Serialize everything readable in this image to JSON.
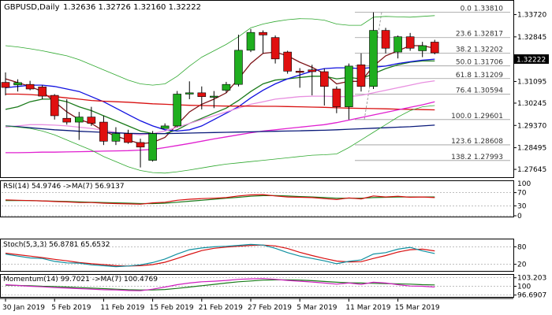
{
  "header": {
    "symbol": "GBPUSD,Daily",
    "ohlc": "1.32636 1.32726 1.32160 1.32222"
  },
  "price_tag": "1.32222",
  "chart_data": {
    "type": "candlestick",
    "symbol": "GBPUSD",
    "timeframe": "Daily",
    "price_ylim": [
      1.274,
      1.342
    ],
    "price_ticks": [
      "1.33720",
      "1.32845",
      "1.31970",
      "1.31095",
      "1.30245",
      "1.29370",
      "1.28495",
      "1.27645"
    ],
    "x_ticks": [
      {
        "i": 0,
        "label": "30 Jan 2019"
      },
      {
        "i": 4,
        "label": "5 Feb 2019"
      },
      {
        "i": 8,
        "label": "11 Feb 2019"
      },
      {
        "i": 12,
        "label": "15 Feb 2019"
      },
      {
        "i": 16,
        "label": "21 Feb 2019"
      },
      {
        "i": 20,
        "label": "27 Feb 2019"
      },
      {
        "i": 24,
        "label": "5 Mar 2019"
      },
      {
        "i": 28,
        "label": "11 Mar 2019"
      },
      {
        "i": 32,
        "label": "15 Mar 2019"
      }
    ],
    "candles": [
      {
        "o": 1.3106,
        "h": 1.3145,
        "l": 1.3055,
        "c": 1.3086
      },
      {
        "o": 1.3096,
        "h": 1.3118,
        "l": 1.307,
        "c": 1.3105
      },
      {
        "o": 1.3098,
        "h": 1.3112,
        "l": 1.3075,
        "c": 1.308
      },
      {
        "o": 1.3088,
        "h": 1.3095,
        "l": 1.304,
        "c": 1.3052
      },
      {
        "o": 1.3055,
        "h": 1.306,
        "l": 1.296,
        "c": 1.2975
      },
      {
        "o": 1.2965,
        "h": 1.304,
        "l": 1.294,
        "c": 1.295
      },
      {
        "o": 1.295,
        "h": 1.299,
        "l": 1.288,
        "c": 1.297
      },
      {
        "o": 1.297,
        "h": 1.301,
        "l": 1.2935,
        "c": 1.2945
      },
      {
        "o": 1.295,
        "h": 1.2975,
        "l": 1.286,
        "c": 1.2875
      },
      {
        "o": 1.2875,
        "h": 1.293,
        "l": 1.286,
        "c": 1.2905
      },
      {
        "o": 1.2905,
        "h": 1.292,
        "l": 1.2865,
        "c": 1.287
      },
      {
        "o": 1.287,
        "h": 1.2885,
        "l": 1.2772,
        "c": 1.2852
      },
      {
        "o": 1.28,
        "h": 1.2915,
        "l": 1.2795,
        "c": 1.2905
      },
      {
        "o": 1.2925,
        "h": 1.2945,
        "l": 1.2925,
        "c": 1.2935
      },
      {
        "o": 1.2935,
        "h": 1.3072,
        "l": 1.293,
        "c": 1.306
      },
      {
        "o": 1.306,
        "h": 1.311,
        "l": 1.304,
        "c": 1.3065
      },
      {
        "o": 1.3065,
        "h": 1.309,
        "l": 1.3,
        "c": 1.305
      },
      {
        "o": 1.305,
        "h": 1.3072,
        "l": 1.3005,
        "c": 1.3052
      },
      {
        "o": 1.3075,
        "h": 1.3108,
        "l": 1.3065,
        "c": 1.3098
      },
      {
        "o": 1.3098,
        "h": 1.3293,
        "l": 1.309,
        "c": 1.3232
      },
      {
        "o": 1.3232,
        "h": 1.3315,
        "l": 1.3225,
        "c": 1.3302
      },
      {
        "o": 1.3302,
        "h": 1.331,
        "l": 1.322,
        "c": 1.3292
      },
      {
        "o": 1.3282,
        "h": 1.329,
        "l": 1.318,
        "c": 1.3198
      },
      {
        "o": 1.3225,
        "h": 1.323,
        "l": 1.314,
        "c": 1.315
      },
      {
        "o": 1.315,
        "h": 1.3162,
        "l": 1.3085,
        "c": 1.3145
      },
      {
        "o": 1.3155,
        "h": 1.3175,
        "l": 1.3055,
        "c": 1.3148
      },
      {
        "o": 1.3148,
        "h": 1.316,
        "l": 1.3015,
        "c": 1.309
      },
      {
        "o": 1.308,
        "h": 1.309,
        "l": 1.2985,
        "c": 1.301
      },
      {
        "o": 1.301,
        "h": 1.318,
        "l": 1.296,
        "c": 1.317
      },
      {
        "o": 1.3175,
        "h": 1.322,
        "l": 1.307,
        "c": 1.309
      },
      {
        "o": 1.309,
        "h": 1.3381,
        "l": 1.308,
        "c": 1.331
      },
      {
        "o": 1.331,
        "h": 1.332,
        "l": 1.322,
        "c": 1.324
      },
      {
        "o": 1.3225,
        "h": 1.329,
        "l": 1.32,
        "c": 1.3285
      },
      {
        "o": 1.3285,
        "h": 1.33,
        "l": 1.323,
        "c": 1.324
      },
      {
        "o": 1.323,
        "h": 1.3265,
        "l": 1.3205,
        "c": 1.325
      },
      {
        "o": 1.3264,
        "h": 1.3273,
        "l": 1.3216,
        "c": 1.3222
      }
    ],
    "fibonacci": [
      {
        "label": "0.0 1.33810",
        "price": 1.3381
      },
      {
        "label": "23.6 1.32817",
        "price": 1.32817
      },
      {
        "label": "38.2 1.32202",
        "price": 1.32202
      },
      {
        "label": "50.0 1.31706",
        "price": 1.31706
      },
      {
        "label": "61.8 1.31209",
        "price": 1.31209
      },
      {
        "label": "76.4 1.30594",
        "price": 1.30594
      },
      {
        "label": "100.0 1.29601",
        "price": 1.29601
      },
      {
        "label": "123.6 1.28608",
        "price": 1.28608
      },
      {
        "label": "138.2 1.27993",
        "price": 1.27993
      }
    ],
    "overlays": [
      {
        "color": "#7e1418",
        "values": [
          1.312,
          1.3105,
          1.309,
          1.307,
          1.303,
          1.299,
          1.296,
          1.2945,
          1.2915,
          1.2895,
          1.288,
          1.2865,
          1.287,
          1.289,
          1.294,
          1.299,
          1.302,
          1.304,
          1.3065,
          1.312,
          1.318,
          1.322,
          1.3225,
          1.321,
          1.3185,
          1.3165,
          1.314,
          1.31,
          1.311,
          1.311,
          1.317,
          1.321,
          1.323,
          1.325,
          1.325,
          1.324
        ]
      },
      {
        "color": "#1a7a1a",
        "values": [
          1.3,
          1.301,
          1.303,
          1.304,
          1.304,
          1.303,
          1.301,
          1.2995,
          1.2975,
          1.2955,
          1.2935,
          1.2915,
          1.2905,
          1.2905,
          1.292,
          1.2945,
          1.2965,
          1.2985,
          1.3005,
          1.3035,
          1.307,
          1.31,
          1.3115,
          1.312,
          1.3125,
          1.313,
          1.313,
          1.312,
          1.3125,
          1.312,
          1.314,
          1.316,
          1.3175,
          1.3185,
          1.319,
          1.319
        ]
      },
      {
        "color": "#1010e0",
        "values": [
          1.3085,
          1.309,
          1.3095,
          1.3095,
          1.309,
          1.308,
          1.307,
          1.305,
          1.303,
          1.3005,
          1.298,
          1.2955,
          1.2935,
          1.292,
          1.2915,
          1.292,
          1.2935,
          1.296,
          1.2985,
          1.301,
          1.3045,
          1.3075,
          1.31,
          1.312,
          1.3135,
          1.315,
          1.316,
          1.3163,
          1.3163,
          1.316,
          1.3165,
          1.317,
          1.318,
          1.3187,
          1.3193,
          1.3197
        ]
      },
      {
        "color": "#e890e0",
        "values": [
          1.293,
          1.2935,
          1.294,
          1.294,
          1.2938,
          1.2935,
          1.293,
          1.2925,
          1.2918,
          1.291,
          1.2905,
          1.29,
          1.2905,
          1.2915,
          1.293,
          1.2945,
          1.296,
          1.2975,
          1.299,
          1.3005,
          1.302,
          1.303,
          1.304,
          1.3045,
          1.305,
          1.3052,
          1.3052,
          1.305,
          1.305,
          1.3055,
          1.3065,
          1.3075,
          1.3085,
          1.3095,
          1.3105,
          1.3112
        ]
      },
      {
        "color": "#d81010",
        "values": [
          1.306,
          1.306,
          1.3058,
          1.3055,
          1.305,
          1.3045,
          1.304,
          1.3035,
          1.3032,
          1.303,
          1.3028,
          1.3025,
          1.3022,
          1.302,
          1.3018,
          1.3016,
          1.3015,
          1.3014,
          1.3013,
          1.3013,
          1.3013,
          1.3012,
          1.3012,
          1.3011,
          1.301,
          1.3009,
          1.3008,
          1.3006,
          1.3005,
          1.3004,
          1.3003,
          1.3002,
          1.3001,
          1.3,
          1.2999,
          1.2998
        ]
      },
      {
        "color": "#e020d0",
        "values": [
          1.283,
          1.283,
          1.2831,
          1.2832,
          1.2832,
          1.2833,
          1.2834,
          1.2835,
          1.2836,
          1.2837,
          1.2838,
          1.284,
          1.2843,
          1.285,
          1.2858,
          1.2866,
          1.2875,
          1.2884,
          1.2892,
          1.29,
          1.2908,
          1.2915,
          1.292,
          1.2925,
          1.293,
          1.2935,
          1.294,
          1.2948,
          1.2958,
          1.2968,
          1.2978,
          1.2988,
          1.2998,
          1.3008,
          1.3018,
          1.303
        ]
      },
      {
        "color": "#0a1a7a",
        "values": [
          1.2935,
          1.2932,
          1.2928,
          1.2924,
          1.292,
          1.2917,
          1.2914,
          1.2912,
          1.291,
          1.2908,
          1.2906,
          1.2905,
          1.2905,
          1.2905,
          1.2906,
          1.2907,
          1.2908,
          1.2909,
          1.291,
          1.2911,
          1.2912,
          1.2913,
          1.2914,
          1.2915,
          1.2916,
          1.2917,
          1.2918,
          1.292,
          1.2922,
          1.2924,
          1.2926,
          1.2928,
          1.293,
          1.2932,
          1.2935,
          1.2938
        ]
      },
      {
        "color": "#2ea82e",
        "width": 0.8,
        "values": [
          1.325,
          1.3245,
          1.3238,
          1.323,
          1.322,
          1.321,
          1.3195,
          1.3175,
          1.3155,
          1.3135,
          1.3115,
          1.31,
          1.3095,
          1.31,
          1.313,
          1.317,
          1.3205,
          1.323,
          1.3255,
          1.3285,
          1.332,
          1.3335,
          1.3345,
          1.3352,
          1.3356,
          1.3355,
          1.335,
          1.3335,
          1.333,
          1.333,
          1.3362,
          1.3365,
          1.3363,
          1.3362,
          1.3365,
          1.3368
        ]
      },
      {
        "color": "#2ea82e",
        "width": 0.8,
        "values": [
          1.2935,
          1.293,
          1.2925,
          1.2915,
          1.29,
          1.288,
          1.286,
          1.284,
          1.2815,
          1.2795,
          1.2775,
          1.276,
          1.2752,
          1.275,
          1.2755,
          1.2762,
          1.277,
          1.2778,
          1.2785,
          1.279,
          1.2795,
          1.28,
          1.2805,
          1.281,
          1.2815,
          1.282,
          1.2822,
          1.2825,
          1.285,
          1.288,
          1.291,
          1.294,
          1.297,
          1.2995,
          1.301,
          1.3015
        ]
      }
    ],
    "rsi": {
      "label": "RSI(14) 54.9746  ->MA(7) 56.9137",
      "ylim": [
        0,
        100
      ],
      "ticks": [
        "70",
        "30",
        "0"
      ],
      "tick_values": [
        70,
        30,
        0
      ],
      "top_tick": "100",
      "line1": {
        "color": "#d81010",
        "values": [
          48,
          47,
          46,
          45,
          43,
          42,
          40,
          40,
          38,
          37,
          36,
          35,
          39,
          41,
          47,
          50,
          52,
          53,
          55,
          60,
          63,
          64,
          60,
          57,
          56,
          55,
          52,
          49,
          54,
          51,
          60,
          57,
          59,
          56,
          57,
          55
        ]
      },
      "line2": {
        "color": "#1a7a1a",
        "values": [
          46,
          46,
          46,
          45,
          44,
          43,
          42,
          41,
          40,
          39,
          38,
          37,
          37,
          38,
          41,
          44,
          47,
          50,
          53,
          56,
          59,
          61,
          61,
          60,
          58,
          57,
          55,
          53,
          53,
          53,
          55,
          56,
          57,
          57,
          57,
          57
        ]
      }
    },
    "stoch": {
      "label": "Stoch(5,3,3) 56.8781 65.6532",
      "ylim": [
        0,
        100
      ],
      "ticks": [
        "80",
        "20"
      ],
      "tick_values": [
        80,
        20
      ],
      "line1": {
        "color": "#1090a0",
        "values": [
          55,
          48,
          42,
          40,
          30,
          25,
          24,
          18,
          15,
          12,
          14,
          18,
          26,
          38,
          55,
          70,
          76,
          80,
          82,
          85,
          88,
          86,
          75,
          60,
          48,
          40,
          32,
          22,
          30,
          35,
          55,
          60,
          72,
          78,
          66,
          57
        ]
      },
      "line2": {
        "color": "#d81010",
        "values": [
          58,
          53,
          48,
          43,
          37,
          32,
          26,
          22,
          19,
          15,
          14,
          15,
          19,
          27,
          40,
          54,
          67,
          75,
          79,
          82,
          85,
          86,
          83,
          74,
          61,
          50,
          40,
          31,
          28,
          29,
          40,
          50,
          62,
          70,
          72,
          66
        ]
      }
    },
    "momentum": {
      "label": "Momentum(14) 99.7021  ->MA(7) 100.4769",
      "ylim": [
        96.0,
        104.0
      ],
      "ticks": [
        "103.203",
        "100",
        "96.6907"
      ],
      "tick_values": [
        103.203,
        100,
        96.6907
      ],
      "line1": {
        "color": "#d020c0",
        "values": [
          100.6,
          100.3,
          100.0,
          99.8,
          99.5,
          99.3,
          99.1,
          98.9,
          98.7,
          98.6,
          98.4,
          98.3,
          98.9,
          99.7,
          100.6,
          101.2,
          101.7,
          101.9,
          102.2,
          102.6,
          102.8,
          102.9,
          102.6,
          102.2,
          101.9,
          101.6,
          101.2,
          100.8,
          101.2,
          100.7,
          101.5,
          101.2,
          100.6,
          100.1,
          100.0,
          99.7
        ]
      },
      "line2": {
        "color": "#1a7a1a",
        "values": [
          100.4,
          100.3,
          100.2,
          100.0,
          99.9,
          99.7,
          99.5,
          99.3,
          99.1,
          98.9,
          98.7,
          98.6,
          98.6,
          98.8,
          99.2,
          99.7,
          100.2,
          100.7,
          101.2,
          101.7,
          102.0,
          102.3,
          102.4,
          102.4,
          102.3,
          102.1,
          101.8,
          101.5,
          101.3,
          101.2,
          101.1,
          101.0,
          100.9,
          100.8,
          100.6,
          100.5
        ]
      }
    }
  }
}
